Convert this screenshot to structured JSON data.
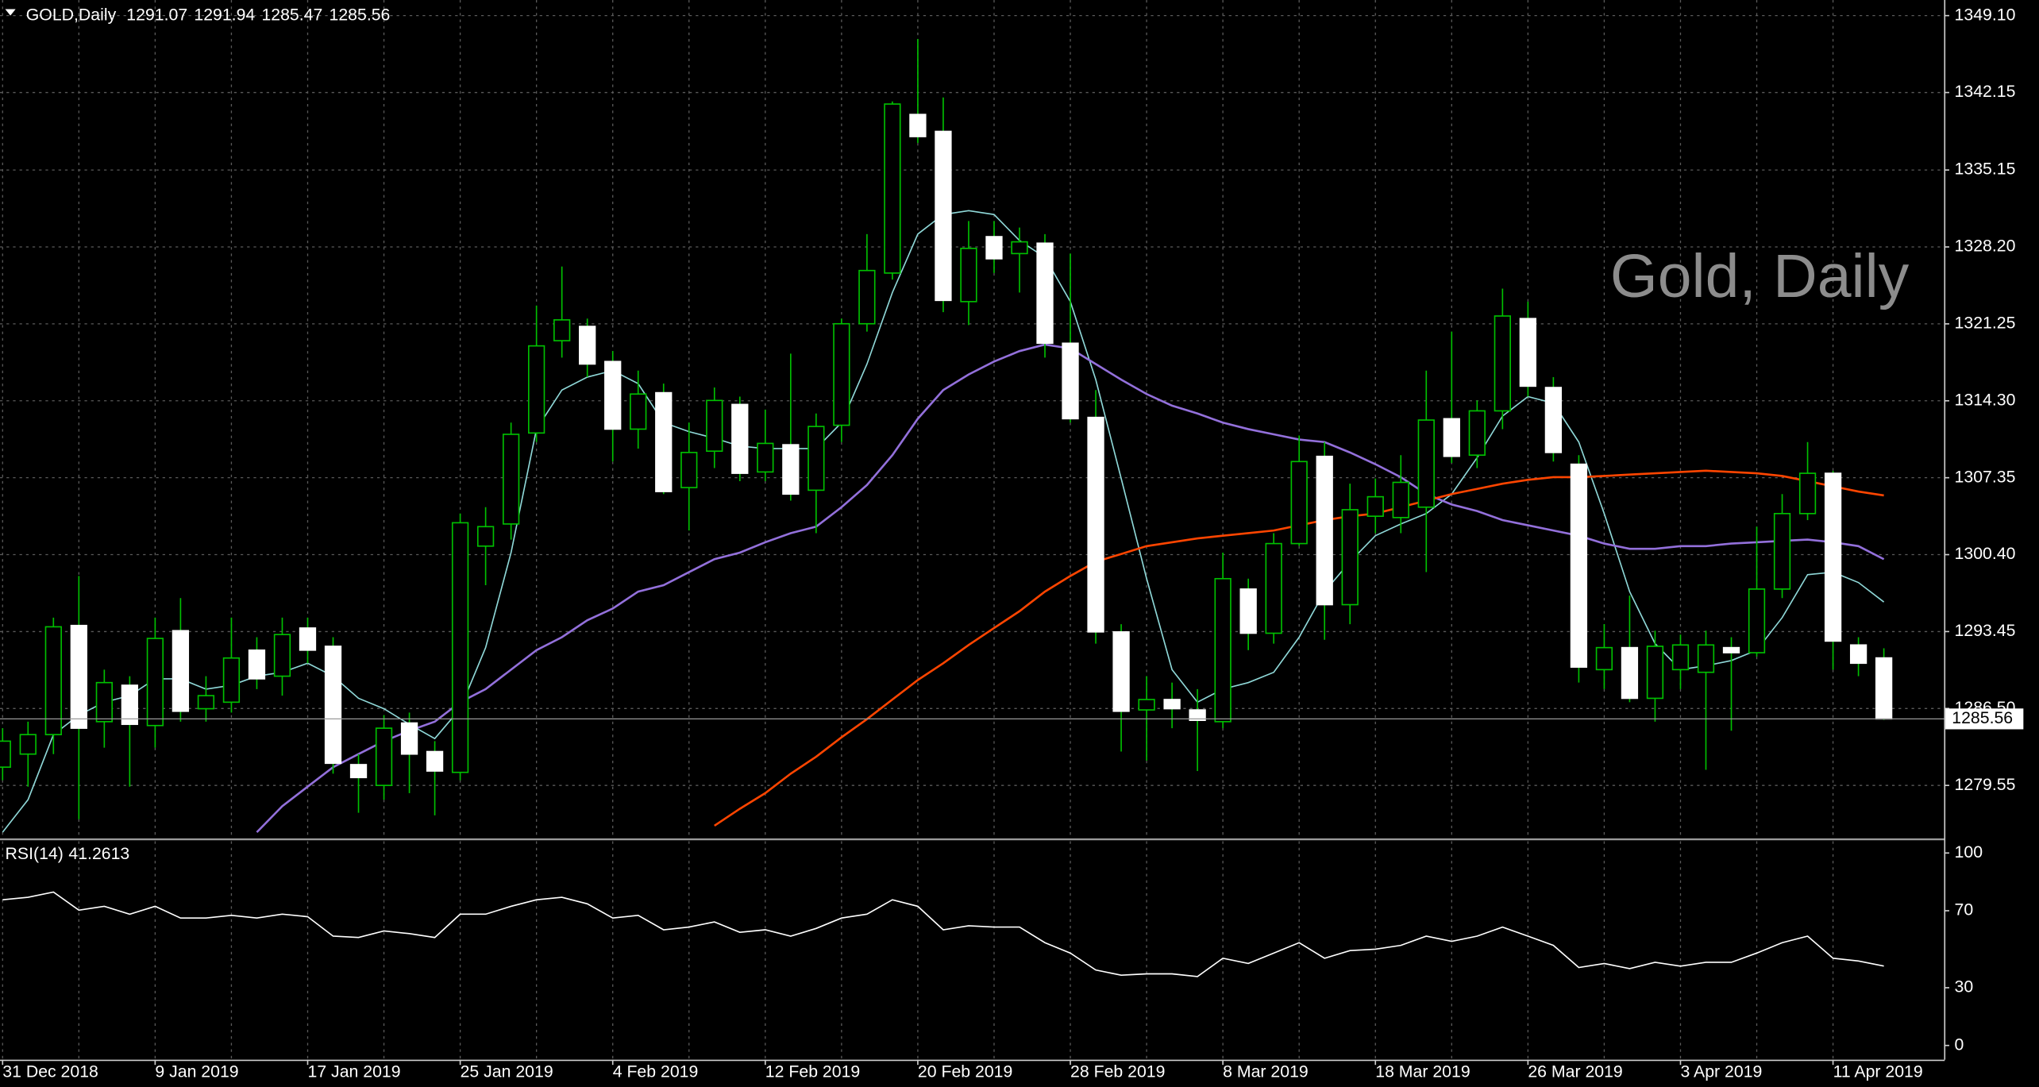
{
  "chart_data": [
    {
      "type": "candlestick",
      "title": "GOLD,Daily",
      "annotation": "Gold, Daily",
      "categories": [
        "31 Dec 2018",
        null,
        null,
        null,
        null,
        null,
        "9 Jan 2019",
        null,
        null,
        null,
        null,
        null,
        "17 Jan 2019",
        null,
        null,
        null,
        null,
        null,
        "25 Jan 2019",
        null,
        null,
        null,
        null,
        null,
        "4 Feb 2019",
        null,
        null,
        null,
        null,
        null,
        "12 Feb 2019",
        null,
        null,
        null,
        null,
        null,
        "20 Feb 2019",
        null,
        null,
        null,
        null,
        null,
        "28 Feb 2019",
        null,
        null,
        null,
        null,
        null,
        "8 Mar 2019",
        null,
        null,
        null,
        null,
        null,
        "18 Mar 2019",
        null,
        null,
        null,
        null,
        null,
        "26 Mar 2019",
        null,
        null,
        null,
        null,
        null,
        "3 Apr 2019",
        null,
        null,
        null,
        null,
        null,
        "11 Apr 2019",
        null,
        null
      ],
      "open": [
        1281.2,
        1282.38,
        1284.14,
        1294.0,
        1285.31,
        1288.6,
        1284.96,
        1293.53,
        1286.48,
        1287.07,
        1291.77,
        1289.42,
        1293.77,
        1292.12,
        1281.43,
        1279.55,
        1285.19,
        1282.61,
        1280.73,
        1301.17,
        1303.17,
        1311.39,
        1319.73,
        1321.02,
        1317.85,
        1311.74,
        1315.03,
        1306.46,
        1309.75,
        1313.97,
        1307.87,
        1310.33,
        1306.22,
        1312.09,
        1321.26,
        1325.84,
        1340.17,
        1338.64,
        1323.26,
        1329.13,
        1327.6,
        1328.54,
        1319.5,
        1312.8,
        1293.42,
        1286.37,
        1287.31,
        1286.37,
        1285.31,
        1297.29,
        1293.3,
        1301.4,
        1309.28,
        1295.88,
        1303.87,
        1303.75,
        1304.69,
        1312.68,
        1309.39,
        1313.39,
        1321.73,
        1315.5,
        1308.57,
        1290.01,
        1292.0,
        1287.42,
        1290.01,
        1289.77,
        1292.0,
        1291.54,
        1297.29,
        1304.11,
        1307.75,
        1292.24,
        1291.07
      ],
      "high": [
        1284.72,
        1285.31,
        1294.71,
        1298.47,
        1290.01,
        1289.42,
        1294.71,
        1296.47,
        1289.42,
        1294.71,
        1292.94,
        1294.71,
        1294.71,
        1292.94,
        1282.38,
        1285.9,
        1286.13,
        1283.55,
        1304.11,
        1304.69,
        1312.33,
        1322.9,
        1326.43,
        1321.73,
        1318.79,
        1317.03,
        1315.85,
        1312.33,
        1315.5,
        1314.68,
        1313.5,
        1318.56,
        1313.15,
        1321.73,
        1329.36,
        1341.35,
        1346.99,
        1341.7,
        1330.54,
        1330.54,
        1329.95,
        1329.36,
        1327.6,
        1315.27,
        1294.12,
        1289.42,
        1288.84,
        1288.25,
        1300.58,
        1298.23,
        1302.34,
        1311.16,
        1310.57,
        1306.81,
        1307.28,
        1309.39,
        1317.03,
        1320.55,
        1314.33,
        1324.43,
        1323.26,
        1316.44,
        1309.39,
        1294.12,
        1296.7,
        1293.53,
        1293.18,
        1293.53,
        1292.94,
        1302.93,
        1305.87,
        1310.57,
        1307.98,
        1292.94,
        1291.94
      ],
      "low": [
        1280.02,
        1279.44,
        1282.38,
        1276.5,
        1282.96,
        1279.44,
        1282.96,
        1285.31,
        1285.31,
        1286.13,
        1288.25,
        1287.66,
        1290.59,
        1280.61,
        1277.08,
        1278.26,
        1278.85,
        1276.85,
        1280.02,
        1297.64,
        1301.76,
        1310.57,
        1318.2,
        1316.44,
        1308.81,
        1309.98,
        1305.87,
        1302.58,
        1308.22,
        1307.04,
        1307.04,
        1305.28,
        1302.34,
        1310.57,
        1320.55,
        1325.25,
        1337.59,
        1322.31,
        1321.14,
        1325.84,
        1324.08,
        1318.2,
        1312.33,
        1292.36,
        1282.61,
        1281.79,
        1284.72,
        1280.85,
        1284.72,
        1291.77,
        1292.36,
        1301.17,
        1292.71,
        1294.12,
        1302.34,
        1302.34,
        1298.82,
        1308.69,
        1308.22,
        1311.74,
        1314.68,
        1308.81,
        1288.84,
        1288.25,
        1287.07,
        1285.31,
        1288.25,
        1280.96,
        1284.49,
        1291.18,
        1296.47,
        1303.52,
        1290.01,
        1289.42,
        1285.47
      ],
      "close": [
        1283.55,
        1284.14,
        1293.88,
        1284.72,
        1288.84,
        1285.07,
        1292.83,
        1286.25,
        1287.66,
        1291.06,
        1289.18,
        1293.18,
        1291.77,
        1281.55,
        1280.26,
        1284.72,
        1282.38,
        1280.85,
        1303.28,
        1302.93,
        1311.27,
        1319.26,
        1321.61,
        1317.62,
        1311.74,
        1314.91,
        1306.1,
        1309.63,
        1314.33,
        1307.75,
        1310.45,
        1305.87,
        1311.98,
        1321.26,
        1326.07,
        1341.11,
        1338.17,
        1323.37,
        1328.07,
        1327.13,
        1328.66,
        1319.5,
        1312.68,
        1293.42,
        1286.25,
        1287.31,
        1286.48,
        1285.43,
        1298.23,
        1293.3,
        1301.4,
        1308.81,
        1295.88,
        1304.46,
        1305.63,
        1306.93,
        1312.56,
        1309.28,
        1313.39,
        1321.96,
        1315.62,
        1309.63,
        1290.24,
        1292.0,
        1287.42,
        1292.12,
        1292.24,
        1292.24,
        1291.54,
        1297.29,
        1304.11,
        1307.75,
        1292.59,
        1290.59,
        1285.56
      ],
      "bull_color": "#00c000",
      "bear_color": "#ffffff",
      "series": [
        {
          "color": "#8fd8d8",
          "values": [
            1275.32,
            1278.26,
            1284.14,
            1285.9,
            1287.07,
            1287.66,
            1289.18,
            1289.18,
            1288.25,
            1288.6,
            1289.42,
            1289.77,
            1290.59,
            1289.42,
            1287.42,
            1286.48,
            1285.07,
            1283.78,
            1286.48,
            1292.0,
            1300.58,
            1311.74,
            1315.27,
            1316.44,
            1317.03,
            1315.85,
            1312.33,
            1311.51,
            1310.92,
            1310.21,
            1309.98,
            1309.98,
            1309.98,
            1312.33,
            1317.62,
            1324.08,
            1329.36,
            1331.13,
            1331.48,
            1331.13,
            1328.78,
            1327.25,
            1323.26,
            1316.21,
            1307.28,
            1298.23,
            1290.01,
            1287.07,
            1288.25,
            1288.84,
            1289.77,
            1292.94,
            1297.06,
            1299.76,
            1302.11,
            1303.17,
            1304.11,
            1305.87,
            1309.16,
            1312.92,
            1314.68,
            1314.09,
            1310.57,
            1304.11,
            1297.06,
            1292.36,
            1290.01,
            1290.36,
            1290.83,
            1291.77,
            1294.71,
            1298.59,
            1298.82,
            1297.88,
            1296.12
          ]
        },
        {
          "color": "#9370db",
          "values": [
            null,
            null,
            null,
            null,
            null,
            null,
            null,
            null,
            null,
            null,
            1275.32,
            1277.67,
            1279.44,
            1281.2,
            1282.38,
            1283.55,
            1284.49,
            1285.31,
            1287.07,
            1288.25,
            1290.01,
            1291.77,
            1292.94,
            1294.47,
            1295.53,
            1297.06,
            1297.64,
            1298.82,
            1299.99,
            1300.58,
            1301.52,
            1302.34,
            1302.93,
            1304.69,
            1306.69,
            1309.39,
            1312.68,
            1315.27,
            1316.68,
            1317.85,
            1318.79,
            1319.38,
            1319.03,
            1317.62,
            1316.21,
            1314.91,
            1313.86,
            1313.15,
            1312.33,
            1311.74,
            1311.27,
            1310.8,
            1310.57,
            1309.63,
            1308.57,
            1307.4,
            1305.87,
            1304.93,
            1304.34,
            1303.52,
            1303.05,
            1302.58,
            1302.11,
            1301.4,
            1300.93,
            1300.93,
            1301.17,
            1301.17,
            1301.4,
            1301.52,
            1301.64,
            1301.76,
            1301.52,
            1301.17,
            1299.99
          ]
        },
        {
          "color": "#ff4500",
          "values": [
            null,
            null,
            null,
            null,
            null,
            null,
            null,
            null,
            null,
            null,
            null,
            null,
            null,
            null,
            null,
            null,
            null,
            null,
            null,
            null,
            null,
            null,
            null,
            null,
            null,
            null,
            null,
            null,
            1275.91,
            1277.44,
            1278.85,
            1280.61,
            1282.14,
            1283.9,
            1285.54,
            1287.31,
            1289.07,
            1290.59,
            1292.24,
            1293.77,
            1295.29,
            1297.06,
            1298.47,
            1299.76,
            1300.46,
            1301.17,
            1301.52,
            1301.87,
            1302.11,
            1302.34,
            1302.58,
            1303.05,
            1303.52,
            1303.87,
            1304.11,
            1304.69,
            1305.28,
            1305.87,
            1306.34,
            1306.81,
            1307.16,
            1307.4,
            1307.4,
            1307.51,
            1307.63,
            1307.75,
            1307.87,
            1307.98,
            1307.87,
            1307.75,
            1307.51,
            1307.04,
            1306.57,
            1306.1,
            1305.75
          ]
        }
      ],
      "ylim": [
        1274.74,
        1350.51
      ],
      "yticks": [
        {
          "value": 1349.1,
          "label": "1349.10"
        },
        1342.15,
        1335.15,
        {
          "value": 1328.2,
          "label": "1328.20"
        },
        1321.25,
        {
          "value": 1314.3,
          "label": "1314.30"
        },
        1307.35,
        {
          "value": 1300.4,
          "label": "1300.40"
        },
        1293.45,
        {
          "value": 1286.5,
          "label": "1286.50"
        },
        1279.55
      ],
      "grid": true
    },
    {
      "type": "line",
      "title": "RSI(14)",
      "series": [
        {
          "color": "#ffffff",
          "values": [
            75.7,
            77.0,
            79.7,
            70.3,
            72.3,
            68.2,
            72.3,
            66.2,
            66.2,
            67.6,
            66.2,
            68.2,
            66.9,
            56.8,
            56.1,
            59.5,
            58.1,
            56.1,
            68.2,
            68.2,
            72.3,
            75.7,
            77.0,
            73.6,
            66.2,
            67.6,
            60.1,
            61.5,
            64.2,
            58.8,
            60.1,
            56.8,
            60.8,
            66.2,
            68.2,
            75.7,
            72.3,
            60.1,
            62.2,
            61.5,
            61.5,
            53.4,
            48.0,
            39.2,
            36.5,
            37.2,
            37.2,
            35.8,
            45.3,
            42.6,
            48.0,
            53.4,
            45.3,
            49.3,
            50.0,
            52.0,
            56.8,
            54.1,
            56.8,
            61.5,
            56.8,
            52.0,
            40.5,
            42.6,
            39.9,
            43.2,
            41.2,
            43.2,
            43.2,
            48.0,
            53.4,
            56.8,
            45.3,
            43.9,
            41.2613
          ]
        }
      ],
      "ylim": [
        -7.4,
        106.1
      ],
      "yticks": [
        100,
        70,
        30,
        0
      ]
    }
  ]
}
